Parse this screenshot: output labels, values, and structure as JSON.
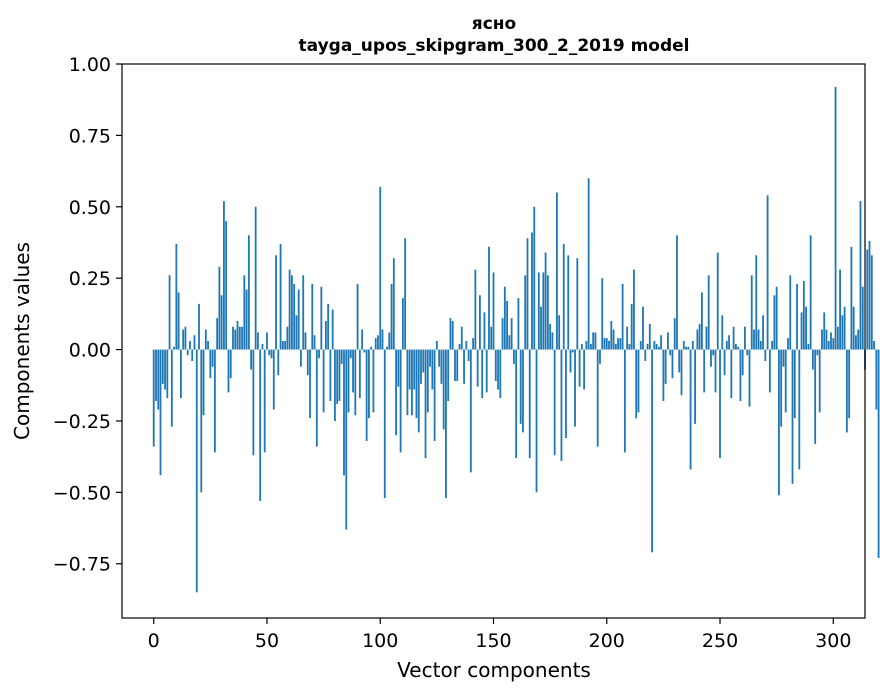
{
  "chart_data": {
    "type": "bar",
    "title_line1": "ясно",
    "title_line2": "tayga_upos_skipgram_300_2_2019 model",
    "xlabel": "Vector components",
    "ylabel": "Components values",
    "xlim": [
      -14,
      314
    ],
    "ylim": [
      -0.94,
      1.0
    ],
    "x_ticks": [
      0,
      50,
      100,
      150,
      200,
      250,
      300
    ],
    "x_tick_labels": [
      "0",
      "50",
      "100",
      "150",
      "200",
      "250",
      "300"
    ],
    "y_ticks": [
      1.0,
      0.75,
      0.5,
      0.25,
      0.0,
      -0.25,
      -0.5,
      -0.75
    ],
    "y_tick_labels": [
      "1.00",
      "0.75",
      "0.50",
      "0.25",
      "0.00",
      "−0.25",
      "−0.50",
      "−0.75"
    ],
    "bar_color": "#1f77b4",
    "grid": false,
    "values": [
      -0.34,
      -0.18,
      -0.21,
      -0.44,
      -0.12,
      -0.14,
      -0.17,
      0.26,
      -0.27,
      0.01,
      0.37,
      0.2,
      -0.17,
      0.07,
      0.08,
      -0.02,
      0.03,
      -0.04,
      0.05,
      -0.85,
      0.16,
      -0.5,
      -0.23,
      0.07,
      0.03,
      -0.1,
      -0.06,
      -0.36,
      0.11,
      0.29,
      0.19,
      0.52,
      0.45,
      -0.15,
      -0.1,
      0.08,
      0.07,
      0.1,
      0.08,
      0.08,
      0.26,
      0.21,
      0.4,
      -0.07,
      -0.37,
      0.5,
      0.06,
      -0.53,
      0.02,
      -0.36,
      0.06,
      -0.02,
      -0.03,
      -0.21,
      0.33,
      -0.09,
      0.37,
      0.03,
      0.03,
      0.08,
      0.28,
      0.26,
      0.23,
      0.12,
      0.21,
      -0.06,
      0.26,
      0.06,
      -0.09,
      -0.24,
      0.23,
      0.05,
      -0.34,
      -0.03,
      0.22,
      -0.22,
      0.1,
      0.16,
      -0.18,
      0.14,
      -0.25,
      -0.19,
      -0.18,
      -0.05,
      -0.44,
      -0.63,
      -0.22,
      -0.03,
      -0.15,
      -0.23,
      0.23,
      -0.17,
      0.07,
      -0.01,
      -0.32,
      -0.24,
      0.01,
      -0.22,
      0.04,
      0.05,
      0.57,
      0.07,
      -0.52,
      0.01,
      0.06,
      0.23,
      0.32,
      -0.3,
      -0.13,
      -0.36,
      0.18,
      0.39,
      -0.23,
      -0.14,
      -0.23,
      -0.14,
      -0.24,
      -0.29,
      -0.12,
      -0.08,
      -0.38,
      -0.22,
      -0.06,
      -0.14,
      -0.32,
      0.03,
      -0.06,
      -0.12,
      -0.28,
      -0.52,
      -0.18,
      0.11,
      0.1,
      -0.11,
      -0.11,
      0.02,
      0.08,
      -0.12,
      0.03,
      -0.04,
      -0.43,
      0.04,
      0.28,
      -0.13,
      0.19,
      -0.17,
      0.13,
      -0.15,
      0.36,
      0.08,
      0.27,
      -0.11,
      -0.14,
      -0.17,
      0.11,
      0.22,
      0.17,
      0.05,
      0.11,
      -0.05,
      -0.38,
      0.18,
      -0.26,
      -0.29,
      0.26,
      0.39,
      -0.38,
      0.41,
      0.5,
      -0.5,
      0.27,
      0.15,
      0.27,
      0.34,
      0.26,
      0.09,
      0.06,
      -0.37,
      0.55,
      0.12,
      -0.39,
      0.37,
      -0.31,
      0.33,
      -0.08,
      -0.01,
      -0.27,
      0.32,
      -0.13,
      0.02,
      -0.14,
      0.03,
      0.6,
      0.02,
      0.06,
      0.06,
      -0.34,
      -0.05,
      0.25,
      0.04,
      0.04,
      0.03,
      0.1,
      0.07,
      0.02,
      0.04,
      0.04,
      0.23,
      -0.36,
      0.08,
      0.02,
      0.16,
      0.28,
      -0.24,
      -0.22,
      0.03,
      0.15,
      -0.04,
      0.02,
      0.09,
      -0.71,
      0.03,
      0.02,
      0.01,
      0.05,
      -0.18,
      -0.12,
      0.06,
      -0.02,
      -0.1,
      0.11,
      0.4,
      -0.08,
      -0.16,
      0.03,
      0.01,
      0.01,
      -0.42,
      0.03,
      -0.26,
      0.07,
      0.09,
      0.2,
      -0.15,
      0.08,
      0.26,
      -0.06,
      -0.02,
      -0.15,
      0.34,
      -0.38,
      0.12,
      -0.09,
      0.03,
      0.05,
      -0.17,
      0.08,
      0.02,
      0.01,
      -0.18,
      -0.09,
      0.08,
      -0.02,
      -0.2,
      0.26,
      0.07,
      0.33,
      0.07,
      0.03,
      0.12,
      -0.04,
      0.54,
      -0.15,
      0.03,
      0.19,
      0.22,
      -0.51,
      -0.27,
      -0.06,
      -0.22,
      0.04,
      0.26,
      -0.47,
      -0.24,
      0.23,
      -0.42,
      0.13,
      0.24,
      0.15,
      0.02,
      0.4,
      -0.07,
      -0.33,
      -0.02,
      -0.22,
      0.07,
      0.13,
      0.07,
      0.03,
      0.06,
      0.04,
      0.92,
      0.08,
      0.28,
      0.12,
      0.15,
      -0.29,
      -0.24,
      0.36,
      0.15,
      0.05,
      0.07,
      0.52,
      0.22,
      -0.07,
      0.35,
      0.38,
      0.33,
      0.03,
      -0.21,
      -0.73
    ]
  }
}
